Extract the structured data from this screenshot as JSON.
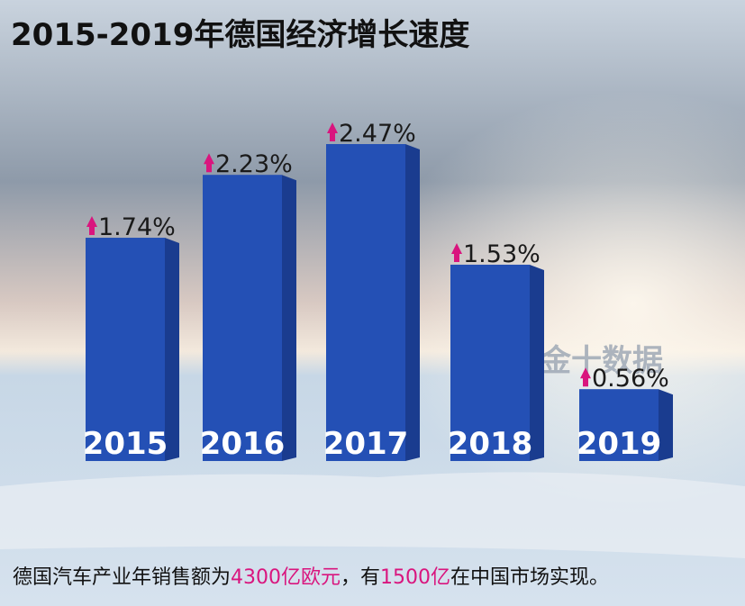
{
  "chart_data": {
    "type": "bar",
    "title": "2015-2019年德国经济增长速度",
    "categories": [
      "2015",
      "2016",
      "2017",
      "2018",
      "2019"
    ],
    "values": [
      1.74,
      2.23,
      2.47,
      1.53,
      0.56
    ],
    "value_labels": [
      "1.74%",
      "2.23%",
      "2.47%",
      "1.53%",
      "0.56%"
    ],
    "color": "#2450b5",
    "annotation": [
      "德国汽车产业年销售额为",
      "4300亿欧元",
      "，有",
      "1500亿",
      "在中国市场实现。"
    ],
    "watermark": "金十数据"
  }
}
